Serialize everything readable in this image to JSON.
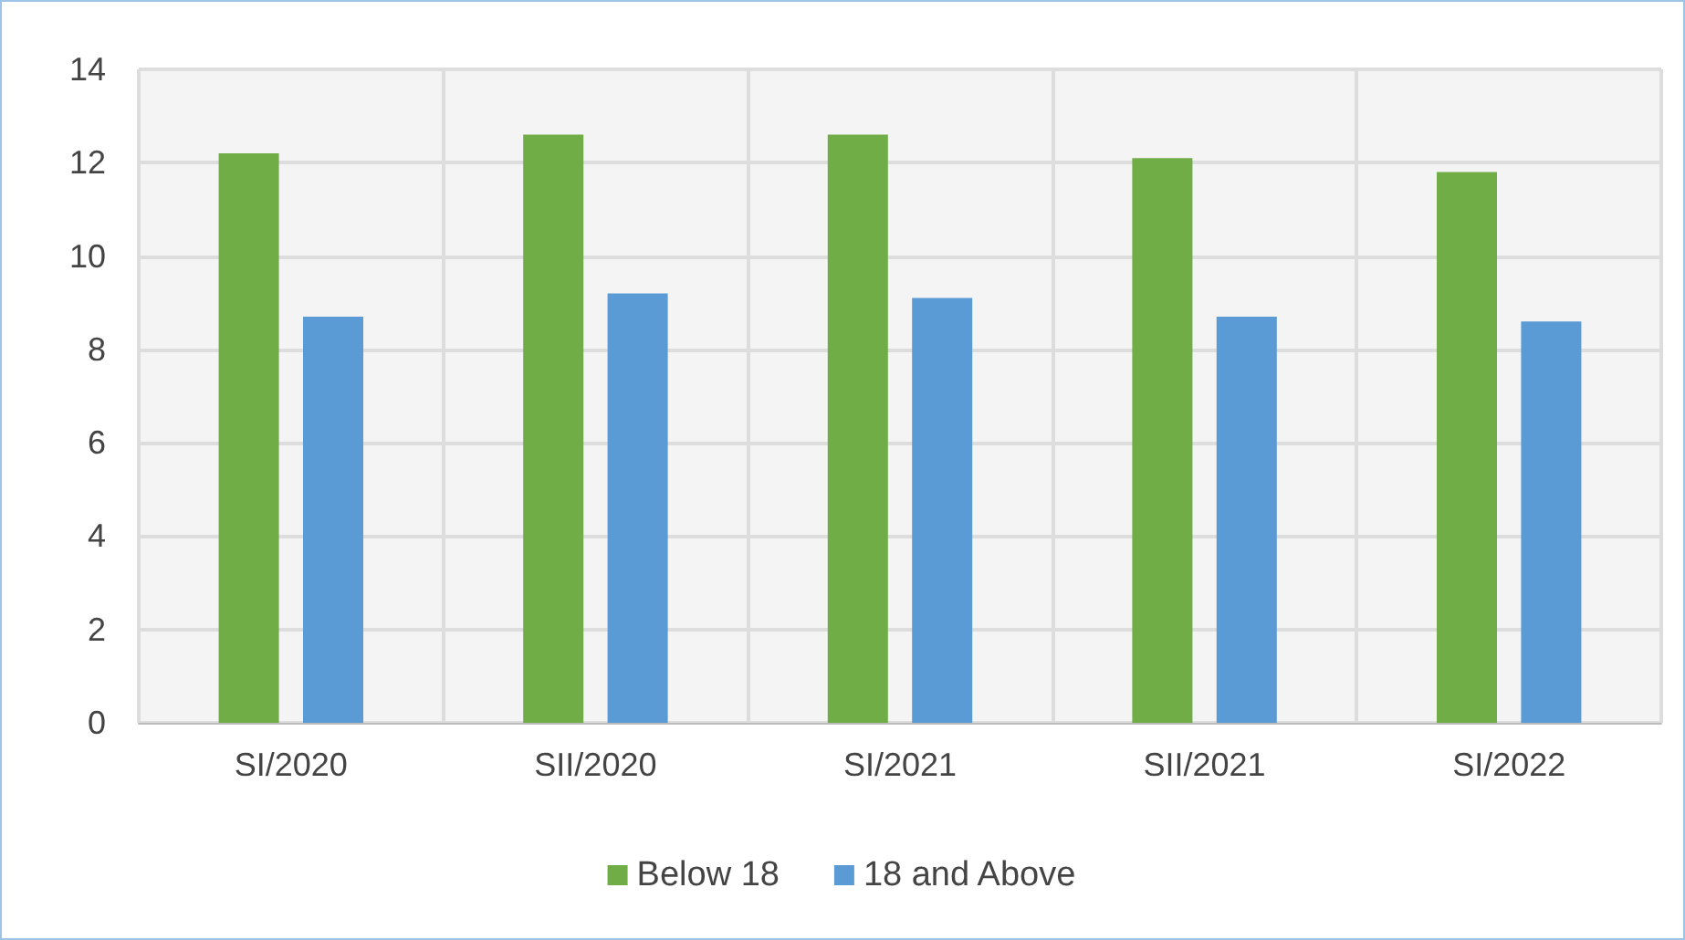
{
  "chart_data": {
    "type": "bar",
    "categories": [
      "SI/2020",
      "SII/2020",
      "SI/2021",
      "SII/2021",
      "SI/2022"
    ],
    "series": [
      {
        "name": "Below 18",
        "color": "#70ad47",
        "values": [
          12.2,
          12.6,
          12.6,
          12.1,
          11.8
        ]
      },
      {
        "name": "18 and Above",
        "color": "#5b9bd5",
        "values": [
          8.7,
          9.2,
          9.1,
          8.7,
          8.6
        ]
      }
    ],
    "ylim": [
      0,
      14
    ],
    "yticks": [
      0,
      2,
      4,
      6,
      8,
      10,
      12,
      14
    ],
    "grid": true,
    "legend": "bottom"
  }
}
